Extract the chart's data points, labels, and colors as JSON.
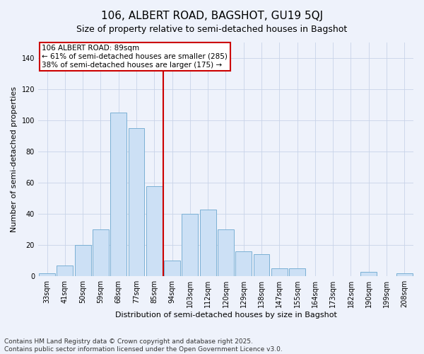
{
  "title": "106, ALBERT ROAD, BAGSHOT, GU19 5QJ",
  "subtitle": "Size of property relative to semi-detached houses in Bagshot",
  "xlabel": "Distribution of semi-detached houses by size in Bagshot",
  "ylabel": "Number of semi-detached properties",
  "categories": [
    "33sqm",
    "41sqm",
    "50sqm",
    "59sqm",
    "68sqm",
    "77sqm",
    "85sqm",
    "94sqm",
    "103sqm",
    "112sqm",
    "120sqm",
    "129sqm",
    "138sqm",
    "147sqm",
    "155sqm",
    "164sqm",
    "173sqm",
    "182sqm",
    "190sqm",
    "199sqm",
    "208sqm"
  ],
  "values": [
    2,
    7,
    20,
    30,
    105,
    95,
    58,
    10,
    40,
    43,
    30,
    16,
    14,
    5,
    5,
    0,
    0,
    0,
    3,
    0,
    2
  ],
  "bar_color": "#cce0f5",
  "bar_edge_color": "#7ab0d4",
  "vline_color": "#cc0000",
  "vline_x_index": 6.5,
  "annotation_text": "106 ALBERT ROAD: 89sqm\n← 61% of semi-detached houses are smaller (285)\n38% of semi-detached houses are larger (175) →",
  "annotation_box_facecolor": "#ffffff",
  "annotation_box_edgecolor": "#cc0000",
  "ylim": [
    0,
    150
  ],
  "yticks": [
    0,
    20,
    40,
    60,
    80,
    100,
    120,
    140
  ],
  "footnote1": "Contains HM Land Registry data © Crown copyright and database right 2025.",
  "footnote2": "Contains public sector information licensed under the Open Government Licence v3.0.",
  "bg_color": "#eef2fb",
  "plot_bg_color": "#eef2fb",
  "grid_color": "#c8d4e8",
  "title_fontsize": 11,
  "subtitle_fontsize": 9,
  "axis_label_fontsize": 8,
  "tick_fontsize": 7,
  "annotation_fontsize": 7.5,
  "footnote_fontsize": 6.5
}
